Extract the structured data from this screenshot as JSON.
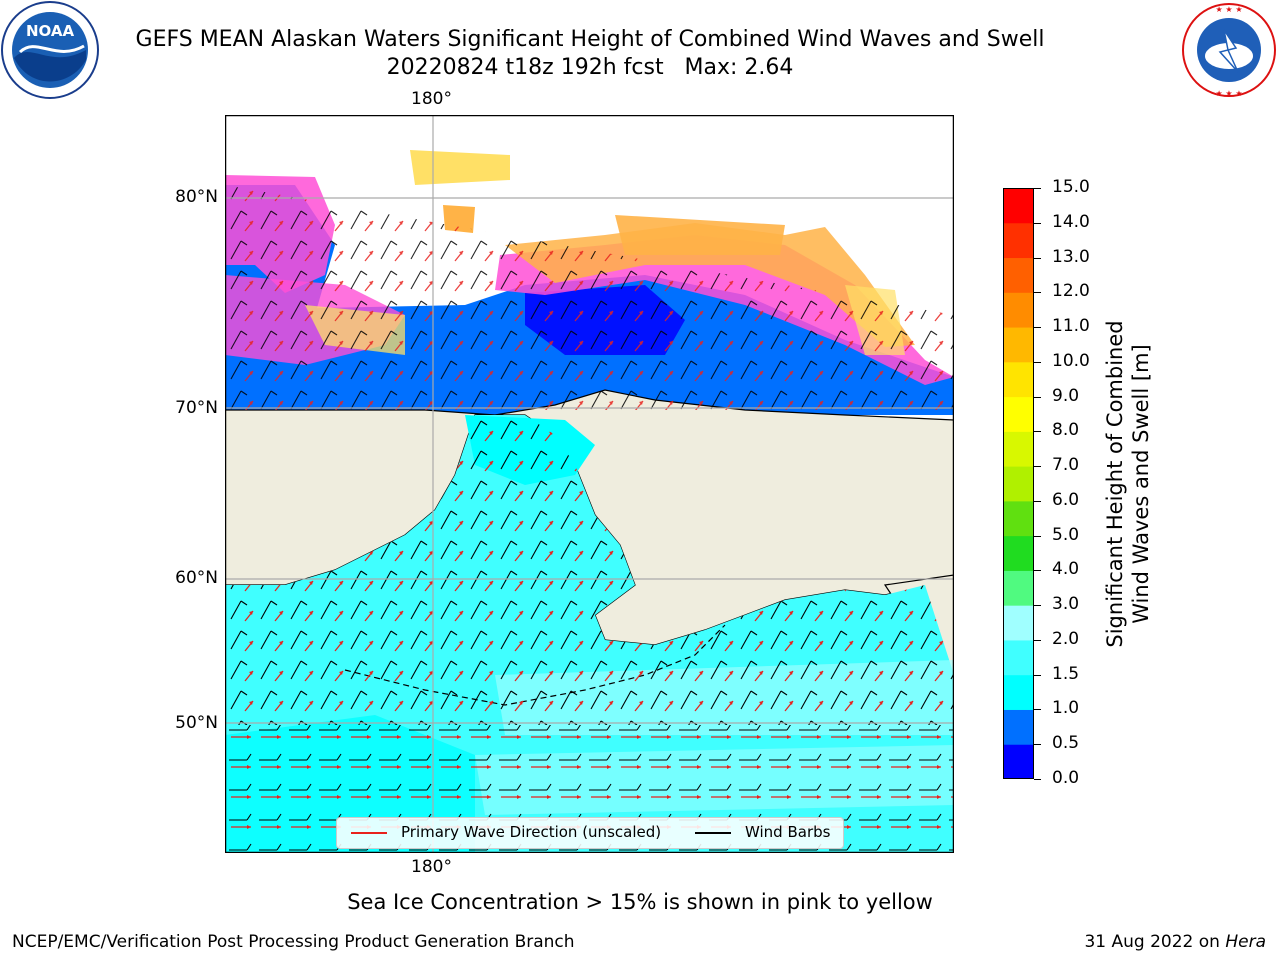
{
  "header": {
    "title_line1": "GEFS MEAN Alaskan Waters Significant Height of Combined Wind Waves and Swell",
    "title_line2": "20220824 t18z 192h fcst   Max: 2.64"
  },
  "logos": {
    "noaa_text": "NOAA",
    "noaa_ring_text": "NATIONAL OCEANIC AND ATMOSPHERIC ADMINISTRATION · U.S. DEPARTMENT OF COMMERCE",
    "nws_ring_text": "NATIONAL WEATHER SERVICE"
  },
  "map": {
    "lat_labels": [
      "80°N",
      "70°N",
      "60°N",
      "50°N"
    ],
    "lon_label_top": "180°",
    "lon_label_bottom": "180°",
    "ocean_colors": {
      "ice_pink": "#ff4fd6",
      "ice_orange": "#ffb347",
      "ice_yellow": "#ffe066",
      "land": "#efedde"
    }
  },
  "legend": {
    "wave_direction": "Primary Wave Direction (unscaled)",
    "wind_barbs": "Wind Barbs",
    "wave_color": "#e8211c",
    "barb_color": "#000000"
  },
  "colorbar": {
    "label_line1": "Significant Height of Combined",
    "label_line2": "Wind Waves and Swell [m]",
    "ticks": [
      "0.0",
      "0.5",
      "1.0",
      "1.5",
      "2.0",
      "3.0",
      "4.0",
      "5.0",
      "6.0",
      "7.0",
      "8.0",
      "9.0",
      "10.0",
      "11.0",
      "12.0",
      "13.0",
      "14.0",
      "15.0"
    ],
    "colors": [
      "#0000ff",
      "#0070ff",
      "#00ffff",
      "#40ffff",
      "#a0ffff",
      "#50fa80",
      "#20dc20",
      "#60e010",
      "#b0f000",
      "#d8f800",
      "#ffff00",
      "#ffe400",
      "#ffb800",
      "#ff8c00",
      "#ff6000",
      "#ff3000",
      "#ff0000"
    ]
  },
  "footer": {
    "note": "Sea Ice Concentration > 15% is shown in pink to yellow",
    "credit_left": "NCEP/EMC/Verification Post Processing Product Generation Branch",
    "credit_right_date": "31 Aug 2022 on ",
    "credit_right_host": "Hera"
  }
}
